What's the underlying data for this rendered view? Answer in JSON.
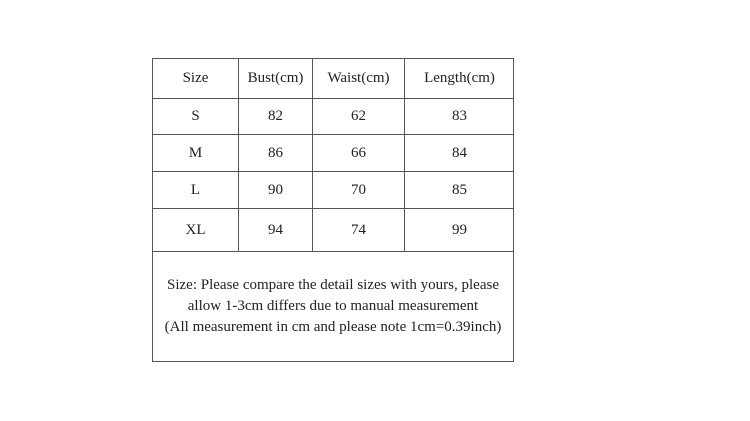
{
  "table": {
    "headers": [
      "Size",
      "Bust(cm)",
      "Waist(cm)",
      "Length(cm)"
    ],
    "rows": [
      [
        "S",
        "82",
        "62",
        "83"
      ],
      [
        "M",
        "86",
        "66",
        "84"
      ],
      [
        "L",
        "90",
        "70",
        "85"
      ],
      [
        "XL",
        "94",
        "74",
        "99"
      ]
    ]
  },
  "note": {
    "lines": [
      "Size: Please compare the detail sizes with yours, please",
      "allow 1-3cm differs due to manual measurement",
      "(All measurement in cm and please note 1cm=0.39inch)"
    ]
  }
}
